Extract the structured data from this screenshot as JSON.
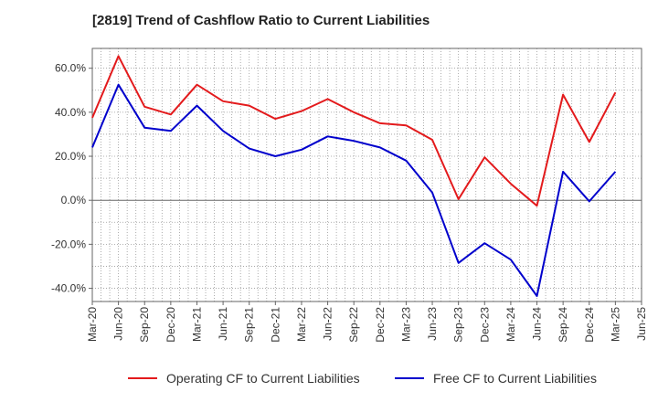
{
  "chart_data": {
    "type": "line",
    "title": "[2819]  Trend of Cashflow Ratio to Current Liabilities",
    "xlabel": "",
    "ylabel": "",
    "x": [
      "Mar-20",
      "Jun-20",
      "Sep-20",
      "Dec-20",
      "Mar-21",
      "Jun-21",
      "Sep-21",
      "Dec-21",
      "Mar-22",
      "Jun-22",
      "Sep-22",
      "Dec-22",
      "Mar-23",
      "Jun-23",
      "Sep-23",
      "Dec-23",
      "Mar-24",
      "Jun-24",
      "Sep-24",
      "Dec-24",
      "Mar-25",
      "Jun-25"
    ],
    "ylim": [
      -46,
      69
    ],
    "yticks": [
      -40,
      -20,
      0,
      20,
      40,
      60
    ],
    "ytick_labels": [
      "-40.0%",
      "-20.0%",
      "0.0%",
      "20.0%",
      "40.0%",
      "60.0%"
    ],
    "grid": true,
    "legend_position": "bottom",
    "series": [
      {
        "name": "Operating CF to Current Liabilities",
        "color": "#e31a1c",
        "values": [
          37.5,
          65.5,
          42.5,
          39.0,
          52.5,
          45.0,
          43.0,
          37.0,
          40.5,
          46.0,
          40.0,
          35.0,
          34.0,
          27.5,
          0.5,
          19.5,
          7.5,
          -2.5,
          48.0,
          26.5,
          49.0,
          null
        ]
      },
      {
        "name": "Free CF to Current Liabilities",
        "color": "#0000cc",
        "values": [
          24.0,
          52.5,
          33.0,
          31.5,
          43.0,
          31.5,
          23.5,
          20.0,
          23.0,
          29.0,
          27.0,
          24.0,
          18.0,
          3.5,
          -28.5,
          -19.5,
          -27.0,
          -43.5,
          13.0,
          -0.5,
          13.0,
          null
        ]
      }
    ]
  }
}
